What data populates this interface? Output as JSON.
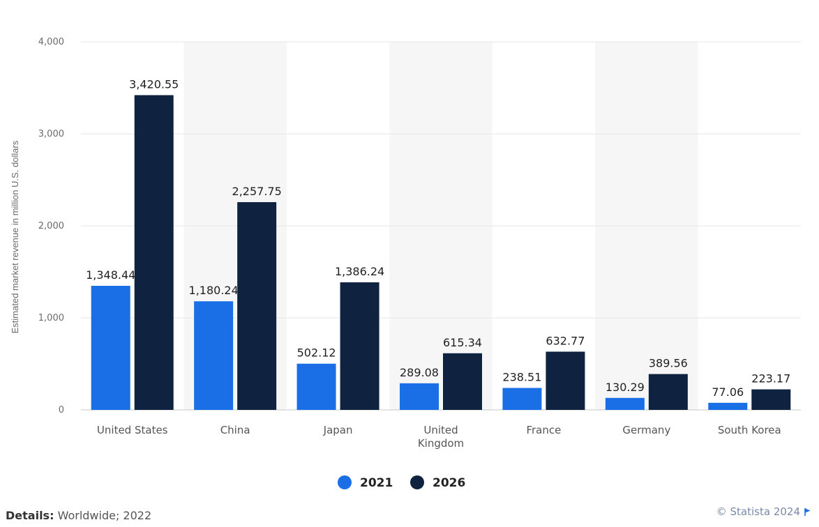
{
  "chart_data": {
    "type": "bar",
    "ylabel": "Estimated market revenue in million U.S. dollars",
    "xlabel": "",
    "ylim": [
      0,
      4000
    ],
    "yticks": [
      0,
      1000,
      2000,
      3000,
      4000
    ],
    "ytick_labels": [
      "0",
      "1,000",
      "2,000",
      "3,000",
      "4,000"
    ],
    "categories": [
      "United States",
      "China",
      "Japan",
      "United Kingdom",
      "France",
      "Germany",
      "South Korea"
    ],
    "category_labels": [
      [
        "United States"
      ],
      [
        "China"
      ],
      [
        "Japan"
      ],
      [
        "United",
        "Kingdom"
      ],
      [
        "France"
      ],
      [
        "Germany"
      ],
      [
        "South Korea"
      ]
    ],
    "series": [
      {
        "name": "2021",
        "color": "#1a6fe6",
        "values": [
          1348.44,
          1180.24,
          502.12,
          289.08,
          238.51,
          130.29,
          77.06
        ],
        "labels": [
          "1,348.44",
          "1,180.24",
          "502.12",
          "289.08",
          "238.51",
          "130.29",
          "77.06"
        ]
      },
      {
        "name": "2026",
        "color": "#0f2340",
        "values": [
          3420.55,
          2257.75,
          1386.24,
          615.34,
          632.77,
          389.56,
          223.17
        ],
        "labels": [
          "3,420.55",
          "2,257.75",
          "1,386.24",
          "615.34",
          "632.77",
          "389.56",
          "223.17"
        ]
      }
    ],
    "grid": true,
    "legend_position": "bottom"
  },
  "footer": {
    "details_label": "Details:",
    "details_value": "Worldwide; 2022",
    "credit": "© Statista 2024"
  }
}
